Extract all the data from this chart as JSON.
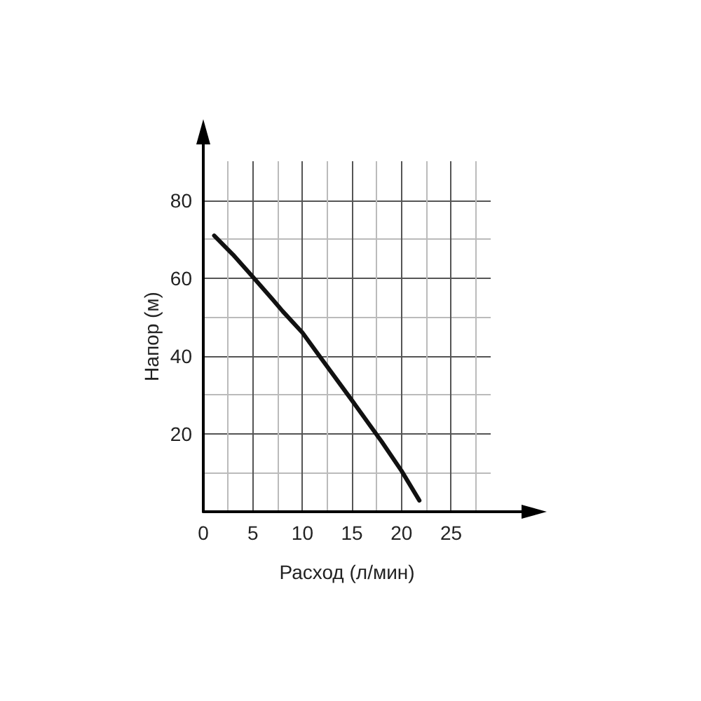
{
  "chart_data": {
    "type": "line",
    "xlabel": "Расход (л/мин)",
    "ylabel": "Напор (м)",
    "x": [
      1.1,
      3,
      5,
      7,
      8,
      10,
      12,
      15,
      18,
      20,
      21.8
    ],
    "series": [
      {
        "color": "#111111",
        "values": [
          70.9,
          66,
          60.3,
          54.5,
          51.5,
          46,
          39,
          28.6,
          18,
          10.5,
          2.9
        ]
      }
    ],
    "xlim": [
      0,
      29
    ],
    "xticks": [
      0,
      5,
      10,
      15,
      20,
      25
    ],
    "ylim": [
      0,
      90
    ],
    "yticks": [
      20,
      40,
      60,
      80
    ],
    "grid": true,
    "marker": "none",
    "line_style": "solid"
  }
}
